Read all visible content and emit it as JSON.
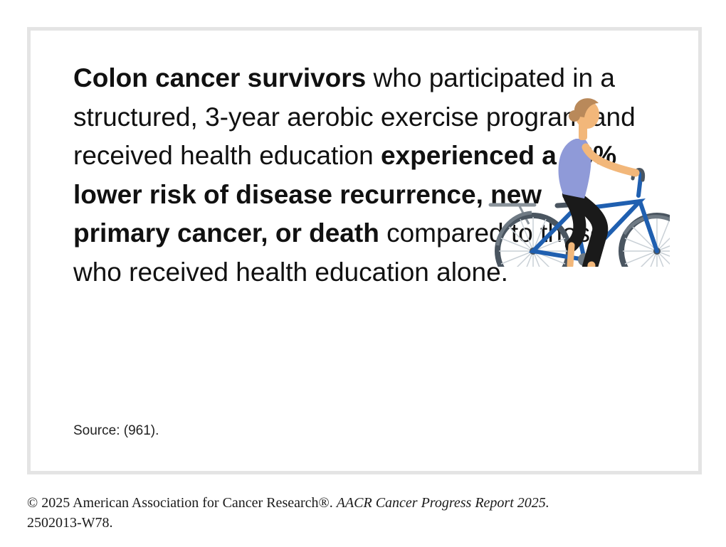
{
  "card": {
    "text_bold_1": "Colon cancer survivors",
    "text_1": " who participated in a structured, 3-year aerobic exercise program and received health education ",
    "text_bold_2": "experienced a 28% lower risk of disease recurrence, new primary cancer, or death",
    "text_2": " compared to those who received health education alone.",
    "source": "Source: (961)."
  },
  "illustration": {
    "icon": "woman-cycling-illustration",
    "colors": {
      "frame": "#1f5fb0",
      "wheel": "#4a5560",
      "shirt": "#8f9ad8",
      "skin": "#f2b77a",
      "hair": "#b9895a"
    }
  },
  "footer": {
    "copyright": "© 2025 American Association for Cancer Research®. ",
    "report": "AACR Cancer Progress Report 2025.",
    "code": "2502013-W78."
  }
}
